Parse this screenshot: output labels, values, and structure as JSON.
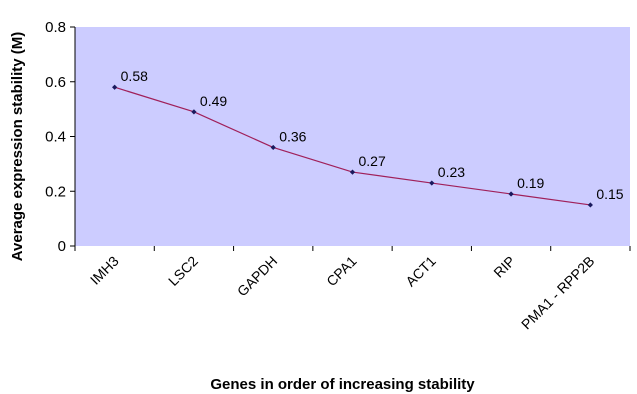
{
  "chart_data": {
    "type": "line",
    "categories": [
      "IMH3",
      "LSC2",
      "GAPDH",
      "CPA1",
      "ACT1",
      "RIP",
      "PMA1 - RPP2B"
    ],
    "values": [
      0.58,
      0.49,
      0.36,
      0.27,
      0.23,
      0.19,
      0.15
    ],
    "data_labels": [
      "0.58",
      "0.49",
      "0.36",
      "0.27",
      "0.23",
      "0.19",
      "0.15"
    ],
    "yticks": [
      0,
      0.2,
      0.4,
      0.6,
      0.8
    ],
    "ytick_labels": [
      "0",
      "0.2",
      "0.4",
      "0.6",
      "0.8"
    ],
    "ylim": [
      0,
      0.8
    ],
    "xlabel": "Genes in order of increasing stability",
    "ylabel": "Average expression stability (M)",
    "grid": false,
    "colors": {
      "plot_background": "#ccccff",
      "line": "#a0205a",
      "marker": "#1a1a5e"
    }
  }
}
